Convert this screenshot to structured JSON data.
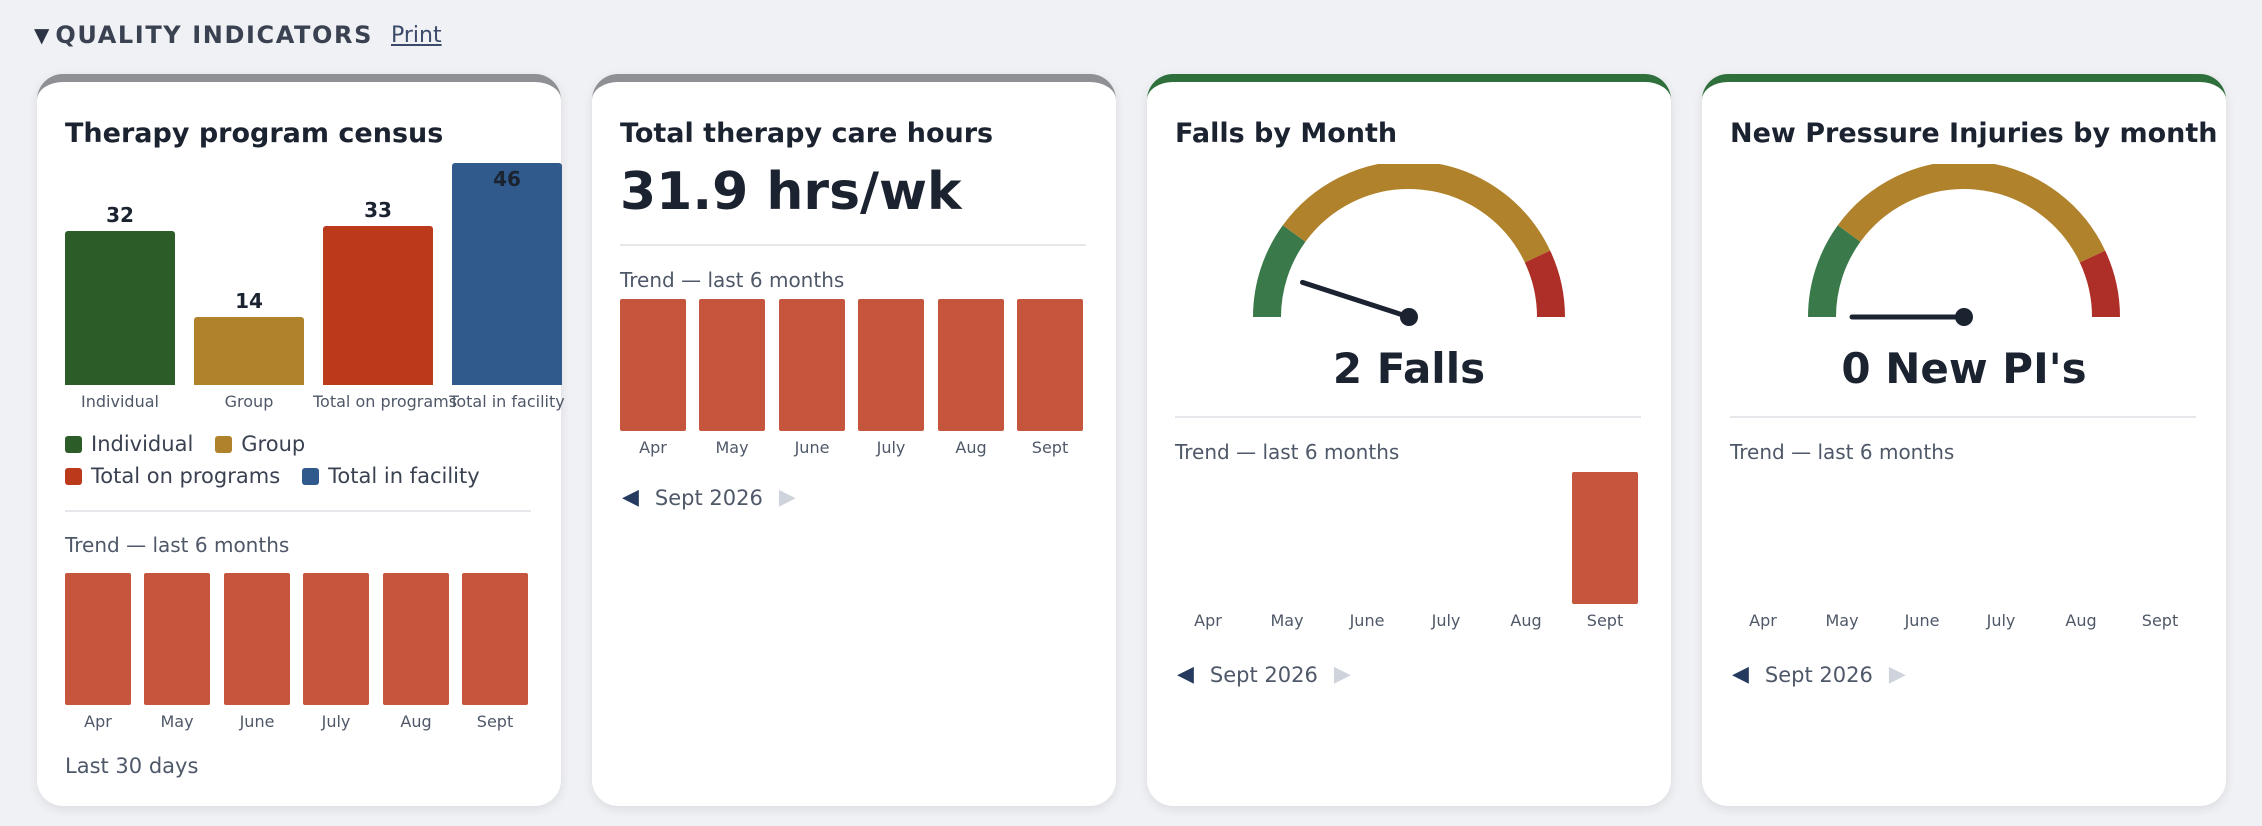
{
  "section": {
    "caret": "▼",
    "title": "QUALITY INDICATORS",
    "print_label": "Print"
  },
  "colors": {
    "trend_bar": "#c5553d",
    "green": "#2c5c28",
    "gold": "#b0822c",
    "red": "#bb3a1c",
    "blue": "#2f5a8b"
  },
  "months": [
    "Apr",
    "May",
    "June",
    "July",
    "Aug",
    "Sept"
  ],
  "census": {
    "title": "Therapy program census",
    "chart_data": {
      "type": "bar",
      "categories": [
        "Individual",
        "Group",
        "Total on programs",
        "Total in facility"
      ],
      "values": [
        32,
        14,
        33,
        46
      ],
      "ylim": [
        0,
        46
      ],
      "legend": "bottom"
    },
    "legend": [
      "Individual",
      "Group",
      "Total on programs",
      "Total in facility"
    ],
    "trend_label": "Trend — last 6 months",
    "trend_values": [
      1,
      1,
      1,
      1,
      1,
      1
    ],
    "footer": "Last 30 days"
  },
  "hours": {
    "title": "Total therapy care hours",
    "metric": "31.9 hrs/wk",
    "trend_label": "Trend — last 6 months",
    "trend_values": [
      1,
      1,
      1,
      1,
      1,
      1
    ],
    "period": "Sept 2026",
    "prev_icon": "◀",
    "next_icon": "▶"
  },
  "falls": {
    "title": "Falls by Month",
    "gauge_value": 2,
    "gauge_label": "2 Falls",
    "trend_label": "Trend — last 6 months",
    "trend_values": [
      0,
      0,
      0,
      0,
      0,
      2
    ],
    "period": "Sept 2026",
    "prev_icon": "◀",
    "next_icon": "▶"
  },
  "pressure": {
    "title": "New Pressure Injuries by month",
    "gauge_value": 0,
    "gauge_label": "0 New PI's",
    "trend_label": "Trend — last 6 months",
    "trend_values": [
      0,
      0,
      0,
      0,
      0,
      0
    ],
    "period": "Sept 2026",
    "prev_icon": "◀",
    "next_icon": "▶"
  }
}
